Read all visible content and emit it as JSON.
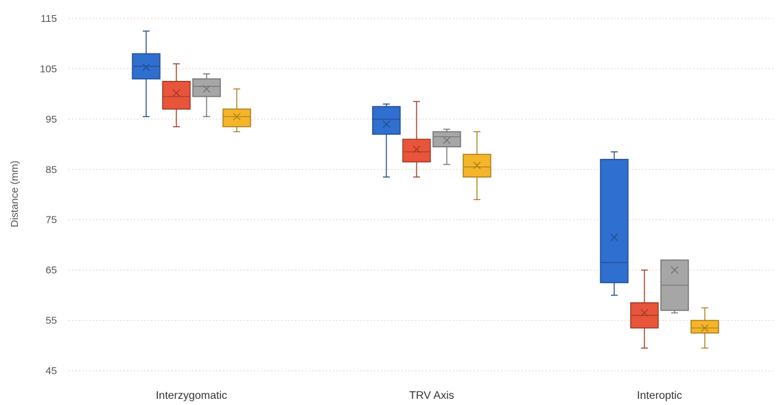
{
  "chart_data": {
    "type": "box",
    "ylabel": "Distance (mm)",
    "xlabel": "",
    "ylim": [
      45,
      115
    ],
    "yticks": [
      45,
      55,
      65,
      75,
      85,
      95,
      105,
      115
    ],
    "categories": [
      "Interzygomatic",
      "TRV Axis",
      "Interoptic"
    ],
    "grid": true,
    "series": [
      {
        "color": "#2f6fcf",
        "boxes": [
          {
            "category": "Interzygomatic",
            "min": 95.5,
            "q1": 103,
            "median": 105.5,
            "q3": 108,
            "max": 112.5,
            "mean": 105.3
          },
          {
            "category": "TRV Axis",
            "min": 83.5,
            "q1": 92,
            "median": 95,
            "q3": 97.5,
            "max": 98,
            "mean": 94
          },
          {
            "category": "Interoptic",
            "min": 60,
            "q1": 62.5,
            "median": 66.5,
            "q3": 87,
            "max": 88.5,
            "mean": 71.5
          }
        ]
      },
      {
        "color": "#e8553a",
        "boxes": [
          {
            "category": "Interzygomatic",
            "min": 93.5,
            "q1": 97,
            "median": 99.5,
            "q3": 102.5,
            "max": 106,
            "mean": 100.2
          },
          {
            "category": "TRV Axis",
            "min": 83.5,
            "q1": 86.5,
            "median": 88.5,
            "q3": 91,
            "max": 98.5,
            "mean": 89
          },
          {
            "category": "Interoptic",
            "min": 49.5,
            "q1": 53.5,
            "median": 56,
            "q3": 58.5,
            "max": 65,
            "mean": 56.5
          }
        ]
      },
      {
        "color": "#a6a6a6",
        "boxes": [
          {
            "category": "Interzygomatic",
            "min": 95.5,
            "q1": 99.5,
            "median": 101.5,
            "q3": 103,
            "max": 104,
            "mean": 101
          },
          {
            "category": "TRV Axis",
            "min": 86,
            "q1": 89.5,
            "median": 91.5,
            "q3": 92.5,
            "max": 93,
            "mean": 90.8
          },
          {
            "category": "Interoptic",
            "min": 56.5,
            "q1": 57,
            "median": 62,
            "q3": 67,
            "max": 67,
            "mean": 65
          }
        ]
      },
      {
        "color": "#f5b52a",
        "boxes": [
          {
            "category": "Interzygomatic",
            "min": 92.5,
            "q1": 93.5,
            "median": 95.5,
            "q3": 97,
            "max": 101,
            "mean": 95.5
          },
          {
            "category": "TRV Axis",
            "min": 79,
            "q1": 83.5,
            "median": 85.5,
            "q3": 88,
            "max": 92.5,
            "mean": 85.8
          },
          {
            "category": "Interoptic",
            "min": 49.5,
            "q1": 52.5,
            "median": 53.5,
            "q3": 55,
            "max": 57.5,
            "mean": 53.5
          }
        ]
      }
    ]
  }
}
